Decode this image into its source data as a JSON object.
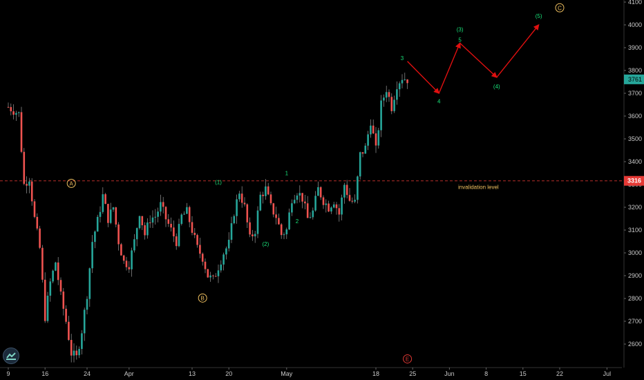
{
  "colors": {
    "background": "#000000",
    "up": "#26a69a",
    "down": "#ef5350",
    "wick": "#9a9a9a",
    "projection": "#e01010",
    "label_green": "#19e37a",
    "label_orange": "#f0c060",
    "label_red": "#e53935",
    "invalidation": "#e53935",
    "price_tag": "#26a69a"
  },
  "chart_data": {
    "type": "candlestick",
    "title": "",
    "xlabel": "",
    "ylabel": "",
    "ylim": [
      2500,
      4100
    ],
    "grid": false,
    "y_ticks": [
      2600,
      2700,
      2800,
      2900,
      3000,
      3100,
      3200,
      3300,
      3400,
      3500,
      3600,
      3700,
      3800,
      3900,
      4000,
      4100
    ],
    "x_ticks": [
      {
        "label": "9",
        "day": 0
      },
      {
        "label": "16",
        "day": 7
      },
      {
        "label": "24",
        "day": 15
      },
      {
        "label": "Apr",
        "day": 23
      },
      {
        "label": "13",
        "day": 35
      },
      {
        "label": "20",
        "day": 42
      },
      {
        "label": "May",
        "day": 53
      },
      {
        "label": "18",
        "day": 70
      },
      {
        "label": "25",
        "day": 77
      },
      {
        "label": "Jun",
        "day": 84
      },
      {
        "label": "8",
        "day": 91
      },
      {
        "label": "15",
        "day": 98
      },
      {
        "label": "22",
        "day": 105
      },
      {
        "label": "Jul",
        "day": 114
      }
    ],
    "price_path": [
      [
        0,
        3640
      ],
      [
        2,
        3610
      ],
      [
        3,
        3300
      ],
      [
        4,
        3330
      ],
      [
        5,
        3150
      ],
      [
        6,
        3020
      ],
      [
        7,
        2720
      ],
      [
        8,
        2870
      ],
      [
        9,
        2960
      ],
      [
        10,
        2810
      ],
      [
        11,
        2700
      ],
      [
        12,
        2560
      ],
      [
        13,
        2540
      ],
      [
        14,
        2660
      ],
      [
        15,
        2820
      ],
      [
        16,
        3050
      ],
      [
        17,
        3140
      ],
      [
        18,
        3250
      ],
      [
        19,
        3150
      ],
      [
        20,
        3200
      ],
      [
        21,
        3050
      ],
      [
        22,
        2960
      ],
      [
        23,
        2950
      ],
      [
        24,
        3050
      ],
      [
        25,
        3180
      ],
      [
        26,
        3080
      ],
      [
        27,
        3150
      ],
      [
        28,
        3160
      ],
      [
        29,
        3210
      ],
      [
        30,
        3150
      ],
      [
        31,
        3100
      ],
      [
        32,
        3050
      ],
      [
        33,
        3160
      ],
      [
        34,
        3180
      ],
      [
        35,
        3100
      ],
      [
        36,
        3020
      ],
      [
        37,
        2980
      ],
      [
        38,
        2900
      ],
      [
        39,
        2880
      ],
      [
        40,
        2940
      ],
      [
        41,
        3000
      ],
      [
        42,
        3040
      ],
      [
        43,
        3180
      ],
      [
        44,
        3270
      ],
      [
        45,
        3200
      ],
      [
        46,
        3060
      ],
      [
        47,
        3100
      ],
      [
        48,
        3250
      ],
      [
        49,
        3280
      ],
      [
        50,
        3200
      ],
      [
        51,
        3160
      ],
      [
        52,
        3080
      ],
      [
        53,
        3100
      ],
      [
        54,
        3240
      ],
      [
        55,
        3270
      ],
      [
        56,
        3240
      ],
      [
        57,
        3150
      ],
      [
        58,
        3180
      ],
      [
        59,
        3280
      ],
      [
        60,
        3230
      ],
      [
        61,
        3200
      ],
      [
        62,
        3230
      ],
      [
        63,
        3170
      ],
      [
        64,
        3300
      ],
      [
        65,
        3230
      ],
      [
        66,
        3220
      ],
      [
        67,
        3430
      ],
      [
        68,
        3460
      ],
      [
        69,
        3580
      ],
      [
        70,
        3450
      ],
      [
        71,
        3650
      ],
      [
        72,
        3720
      ],
      [
        73,
        3640
      ],
      [
        74,
        3740
      ],
      [
        75,
        3770
      ],
      [
        76,
        3761
      ]
    ],
    "last_price": "3761",
    "invalidation_level": {
      "value": 3316,
      "label": "invalidation level",
      "tag": "3316"
    },
    "projection_path": [
      [
        76,
        3840
      ],
      [
        82,
        3700
      ],
      [
        86,
        3920
      ],
      [
        93,
        3770
      ],
      [
        101,
        4000
      ]
    ],
    "wave_labels": [
      {
        "text": "A",
        "day": 12,
        "price": 3305,
        "circled": true,
        "color": "orange"
      },
      {
        "text": "B",
        "day": 37,
        "price": 2802,
        "circled": true,
        "color": "orange"
      },
      {
        "text": "C",
        "day": 105,
        "price": 4075,
        "circled": true,
        "color": "orange"
      },
      {
        "text": "E",
        "day": 76,
        "price": 2535,
        "circled": true,
        "color": "red"
      },
      {
        "text": "(1)",
        "day": 40,
        "price": 3310,
        "circled": false,
        "color": "green"
      },
      {
        "text": "(2)",
        "day": 49,
        "price": 3040,
        "circled": false,
        "color": "green"
      },
      {
        "text": "1",
        "day": 53,
        "price": 3350,
        "circled": false,
        "color": "green"
      },
      {
        "text": "2",
        "day": 55,
        "price": 3140,
        "circled": false,
        "color": "green"
      },
      {
        "text": "3",
        "day": 75,
        "price": 3855,
        "circled": false,
        "color": "green"
      },
      {
        "text": "4",
        "day": 82,
        "price": 3665,
        "circled": false,
        "color": "green"
      },
      {
        "text": "(3)",
        "day": 86,
        "price": 3980,
        "circled": false,
        "color": "green"
      },
      {
        "text": "5",
        "day": 86,
        "price": 3935,
        "circled": false,
        "color": "green"
      },
      {
        "text": "(4)",
        "day": 93,
        "price": 3730,
        "circled": false,
        "color": "green"
      },
      {
        "text": "(5)",
        "day": 101,
        "price": 4040,
        "circled": false,
        "color": "green"
      }
    ]
  }
}
